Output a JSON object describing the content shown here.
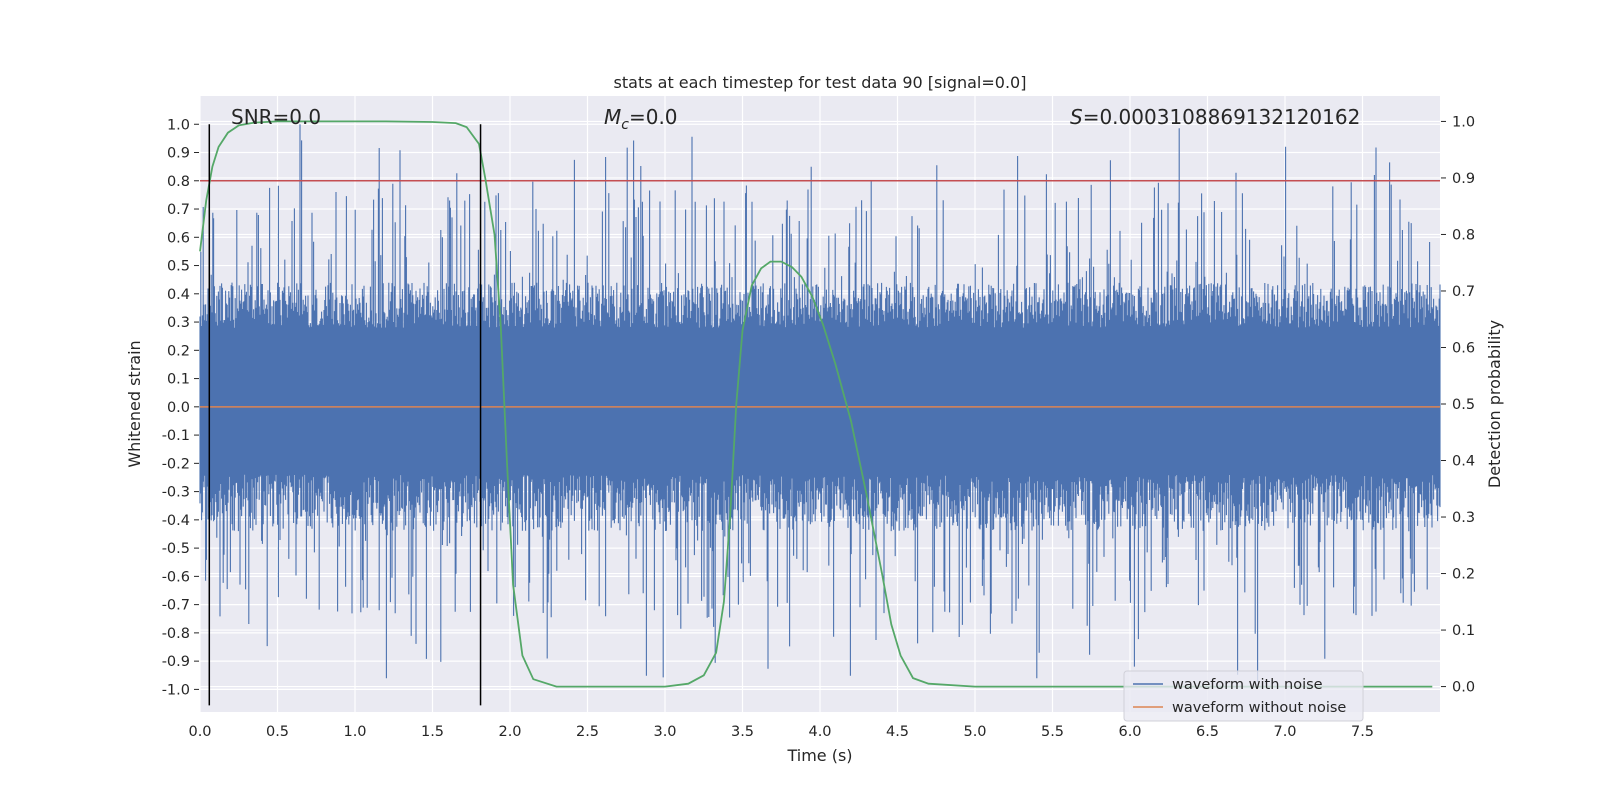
{
  "chart_data": {
    "type": "line",
    "title": "stats at each timestep for test data 90 [signal=0.0]",
    "xlabel": "Time (s)",
    "ylabel": "Whitened strain",
    "y2label": "Detection probability",
    "xlim": [
      0.0,
      8.0
    ],
    "ylim": [
      -1.08,
      1.1
    ],
    "y2lim": [
      -0.045,
      1.045
    ],
    "x_ticks": [
      "0.0",
      "0.5",
      "1.0",
      "1.5",
      "2.0",
      "2.5",
      "3.0",
      "3.5",
      "4.0",
      "4.5",
      "5.0",
      "5.5",
      "6.0",
      "6.5",
      "7.0",
      "7.5"
    ],
    "y_ticks": [
      "1.0",
      "0.9",
      "0.8",
      "0.7",
      "0.6",
      "0.5",
      "0.4",
      "0.3",
      "0.2",
      "0.1",
      "0.0",
      "-0.1",
      "-0.2",
      "-0.3",
      "-0.4",
      "-0.5",
      "-0.6",
      "-0.7",
      "-0.8",
      "-0.9",
      "-1.0"
    ],
    "y2_ticks": [
      "1.0",
      "0.9",
      "0.8",
      "0.7",
      "0.6",
      "0.5",
      "0.4",
      "0.3",
      "0.2",
      "0.1",
      "0.0"
    ],
    "grid": true,
    "legend_position": "lower-right",
    "annotations": {
      "snr": "SNR=0.0",
      "mc_symbol": "M",
      "mc_sub": "c",
      "mc_value": "=0.0",
      "s_symbol": "S",
      "s_value": "=0.0003108869132120162"
    },
    "series": [
      {
        "name": "waveform with noise",
        "color": "#4c72b0",
        "axis": "left",
        "style": "noise",
        "amplitude_typical": 0.4,
        "peak_max": 1.0,
        "peak_min": -0.98
      },
      {
        "name": "waveform without noise",
        "color": "#dd8452",
        "axis": "left",
        "constant": 0.0
      },
      {
        "name": "detection probability",
        "color": "#55a868",
        "axis": "right",
        "x": [
          0.0,
          0.04,
          0.08,
          0.12,
          0.18,
          0.25,
          0.35,
          0.5,
          0.8,
          1.2,
          1.5,
          1.65,
          1.72,
          1.8,
          1.84,
          1.9,
          1.94,
          1.98,
          2.02,
          2.08,
          2.15,
          2.3,
          2.6,
          3.0,
          3.15,
          3.25,
          3.33,
          3.38,
          3.42,
          3.46,
          3.5,
          3.56,
          3.62,
          3.68,
          3.75,
          3.82,
          3.88,
          3.95,
          4.02,
          4.1,
          4.2,
          4.3,
          4.4,
          4.46,
          4.52,
          4.6,
          4.7,
          5.0,
          6.0,
          7.0,
          7.95
        ],
        "values": [
          0.77,
          0.86,
          0.92,
          0.955,
          0.98,
          0.993,
          0.998,
          1.0,
          1.0,
          1.0,
          0.999,
          0.997,
          0.99,
          0.96,
          0.9,
          0.8,
          0.64,
          0.4,
          0.18,
          0.055,
          0.013,
          0.0,
          0.0,
          0.0,
          0.005,
          0.02,
          0.06,
          0.15,
          0.3,
          0.5,
          0.63,
          0.71,
          0.74,
          0.752,
          0.752,
          0.742,
          0.725,
          0.69,
          0.64,
          0.57,
          0.47,
          0.34,
          0.2,
          0.11,
          0.055,
          0.015,
          0.005,
          0.0,
          0.0,
          0.0,
          0.0
        ]
      },
      {
        "name": "threshold",
        "color": "#c44e52",
        "axis": "left",
        "constant": 0.8
      }
    ],
    "vertical_markers": [
      0.06,
      1.81
    ],
    "legend": [
      "waveform with noise",
      "waveform without noise"
    ]
  }
}
